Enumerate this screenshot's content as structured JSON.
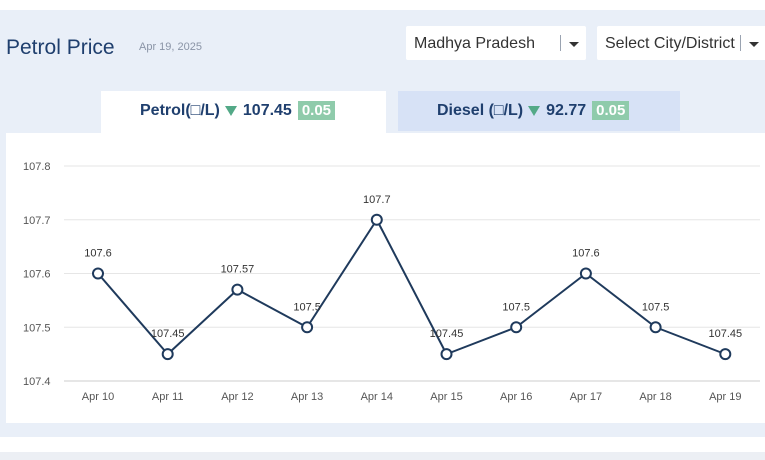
{
  "header": {
    "title": "Petrol Price",
    "date": "Apr 19, 2025"
  },
  "filters": {
    "state": "Madhya Pradesh",
    "city": "Select City/District"
  },
  "tabs": {
    "petrol": {
      "label": "Petrol(□/L)",
      "price": "107.45",
      "change": "0.05",
      "trend": "down"
    },
    "diesel": {
      "label": "Diesel (□/L)",
      "price": "92.77",
      "change": "0.05",
      "trend": "down"
    }
  },
  "colors": {
    "accent": "#1f3f6e",
    "line": "#1f3a5c",
    "down_green": "#53a987",
    "badge": "#8fcbab"
  },
  "chart_data": {
    "type": "line",
    "categories": [
      "Apr 10",
      "Apr 11",
      "Apr 12",
      "Apr 13",
      "Apr 14",
      "Apr 15",
      "Apr 16",
      "Apr 17",
      "Apr 18",
      "Apr 19"
    ],
    "values": [
      107.6,
      107.45,
      107.57,
      107.5,
      107.7,
      107.45,
      107.5,
      107.6,
      107.5,
      107.45
    ],
    "data_labels": [
      "107.6",
      "107.45",
      "107.57",
      "107.5",
      "107.7",
      "107.45",
      "107.5",
      "107.6",
      "107.5",
      "107.45"
    ],
    "y_ticks": [
      "107.8",
      "107.7",
      "107.6",
      "107.5",
      "107.4"
    ],
    "ylim": [
      107.4,
      107.8
    ],
    "grid": true,
    "title": "",
    "xlabel": "",
    "ylabel": ""
  }
}
